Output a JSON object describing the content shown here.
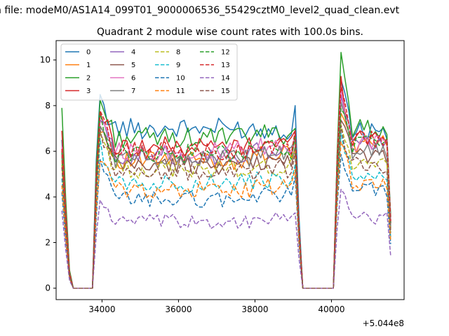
{
  "chart_data": {
    "type": "line",
    "suptitle": "n file: modeM0/AS1A14_099T01_9000006536_55429cztM0_level2_quad_clean.evt",
    "title": "Quadrant 2 module wise count rates with 100.0s bins.",
    "xlabel": "",
    "ylabel": "",
    "x_offset_label": "+5.044e8",
    "xlim": [
      32800,
      41900
    ],
    "ylim": [
      -0.5,
      10.85
    ],
    "x_ticks": [
      34000,
      36000,
      38000,
      40000
    ],
    "x_tick_labels": [
      "34000",
      "36000",
      "38000",
      "40000"
    ],
    "y_ticks": [
      0,
      2,
      4,
      6,
      8,
      10
    ],
    "y_tick_labels": [
      "0",
      "2",
      "4",
      "6",
      "8",
      "10"
    ],
    "legend_position": "top-left",
    "legend_columns": 4,
    "series": [
      {
        "name": "0",
        "color": "#1f77b4",
        "dash": "solid",
        "plateau1": 7.0,
        "plateau2": 6.9,
        "peak1": 8.1,
        "peak2": 9.4,
        "spike": 8.0,
        "start": 6.5
      },
      {
        "name": "1",
        "color": "#ff7f0e",
        "dash": "solid",
        "plateau1": 5.6,
        "plateau2": 6.3,
        "peak1": 7.2,
        "peak2": 7.8,
        "spike": 6.6,
        "start": 5.6
      },
      {
        "name": "2",
        "color": "#2ca02c",
        "dash": "solid",
        "plateau1": 6.6,
        "plateau2": 7.0,
        "peak1": 8.2,
        "peak2": 10.3,
        "spike": 7.0,
        "start": 7.9
      },
      {
        "name": "3",
        "color": "#d62728",
        "dash": "solid",
        "plateau1": 6.2,
        "plateau2": 6.6,
        "peak1": 7.8,
        "peak2": 8.9,
        "spike": 6.9,
        "start": 6.9
      },
      {
        "name": "4",
        "color": "#9467bd",
        "dash": "solid",
        "plateau1": 5.8,
        "plateau2": 6.3,
        "peak1": 7.4,
        "peak2": 8.2,
        "spike": 6.6,
        "start": 6.0
      },
      {
        "name": "5",
        "color": "#8c564b",
        "dash": "solid",
        "plateau1": 5.4,
        "plateau2": 5.8,
        "peak1": 7.0,
        "peak2": 7.6,
        "spike": 6.2,
        "start": 5.8
      },
      {
        "name": "6",
        "color": "#e377c2",
        "dash": "solid",
        "plateau1": 6.0,
        "plateau2": 6.4,
        "peak1": 7.6,
        "peak2": 8.4,
        "spike": 6.8,
        "start": 6.2
      },
      {
        "name": "7",
        "color": "#7f7f7f",
        "dash": "solid",
        "plateau1": 5.7,
        "plateau2": 6.0,
        "peak1": 7.2,
        "peak2": 7.9,
        "spike": 6.5,
        "start": 5.9
      },
      {
        "name": "8",
        "color": "#bcbd22",
        "dash": "dashed",
        "plateau1": 5.2,
        "plateau2": 5.4,
        "peak1": 6.8,
        "peak2": 7.2,
        "spike": 6.0,
        "start": 5.4
      },
      {
        "name": "9",
        "color": "#17becf",
        "dash": "dashed",
        "plateau1": 4.6,
        "plateau2": 4.9,
        "peak1": 6.2,
        "peak2": 6.5,
        "spike": 5.4,
        "start": 4.8
      },
      {
        "name": "10",
        "color": "#1f77b4",
        "dash": "dashed",
        "plateau1": 3.9,
        "plateau2": 4.3,
        "peak1": 5.4,
        "peak2": 5.9,
        "spike": 4.9,
        "start": 4.2
      },
      {
        "name": "11",
        "color": "#ff7f0e",
        "dash": "dashed",
        "plateau1": 4.3,
        "plateau2": 4.6,
        "peak1": 5.8,
        "peak2": 6.3,
        "spike": 5.2,
        "start": 4.5
      },
      {
        "name": "12",
        "color": "#2ca02c",
        "dash": "dashed",
        "plateau1": 5.9,
        "plateau2": 6.3,
        "peak1": 7.3,
        "peak2": 8.0,
        "spike": 6.7,
        "start": 6.0
      },
      {
        "name": "13",
        "color": "#d62728",
        "dash": "dashed",
        "plateau1": 6.0,
        "plateau2": 6.5,
        "peak1": 7.5,
        "peak2": 8.6,
        "spike": 6.9,
        "start": 6.1
      },
      {
        "name": "14",
        "color": "#9467bd",
        "dash": "dashed",
        "plateau1": 2.9,
        "plateau2": 3.1,
        "peak1": 3.9,
        "peak2": 4.3,
        "spike": 3.3,
        "start": 3.4
      },
      {
        "name": "15",
        "color": "#8c564b",
        "dash": "dashed",
        "plateau1": 5.1,
        "plateau2": 5.4,
        "peak1": 6.6,
        "peak2": 7.0,
        "spike": 5.9,
        "start": 5.3
      }
    ],
    "time_structure": {
      "bin_width": 100,
      "first_bin": 32950,
      "last_bin": 41550,
      "gap1": [
        33150,
        33750
      ],
      "on1": [
        33950,
        39050
      ],
      "gap2": [
        39250,
        40050
      ],
      "on2": [
        40250,
        41450
      ]
    }
  }
}
